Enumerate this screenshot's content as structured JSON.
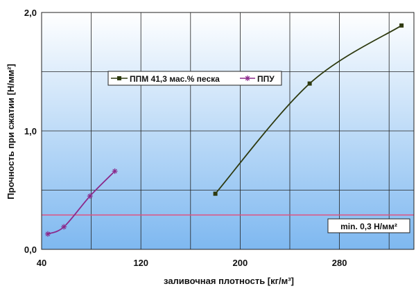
{
  "chart_data": {
    "type": "line",
    "title": "",
    "xlabel": "заливочная плотность [кг/м³]",
    "ylabel": "Прочность при сжатии [Н/мм²]",
    "xlim": [
      40,
      340
    ],
    "ylim": [
      0,
      2
    ],
    "x_ticks": [
      40,
      120,
      200,
      280
    ],
    "x_tick_labels": [
      "40",
      "120",
      "200",
      "280"
    ],
    "y_ticks": [
      0,
      1,
      2
    ],
    "y_tick_labels": [
      "0,0",
      "1,0",
      "2,0"
    ],
    "grid": true,
    "legend_position": "top-center",
    "series": [
      {
        "name": "ППМ 41,3 мас.% песка",
        "color": "#2e3a10",
        "marker": "square",
        "x": [
          180,
          256,
          330
        ],
        "y": [
          0.47,
          1.4,
          1.89
        ]
      },
      {
        "name": "ППУ",
        "color": "#8b2a8b",
        "marker": "star",
        "x": [
          45,
          58,
          79,
          99
        ],
        "y": [
          0.13,
          0.19,
          0.45,
          0.66
        ]
      }
    ],
    "reference_line": {
      "y": 0.29,
      "color": "#e05080",
      "label": "min. 0,3 Н/мм²"
    },
    "background_gradient": {
      "top": "#ffffff",
      "bottom": "#7eb8f0"
    }
  }
}
